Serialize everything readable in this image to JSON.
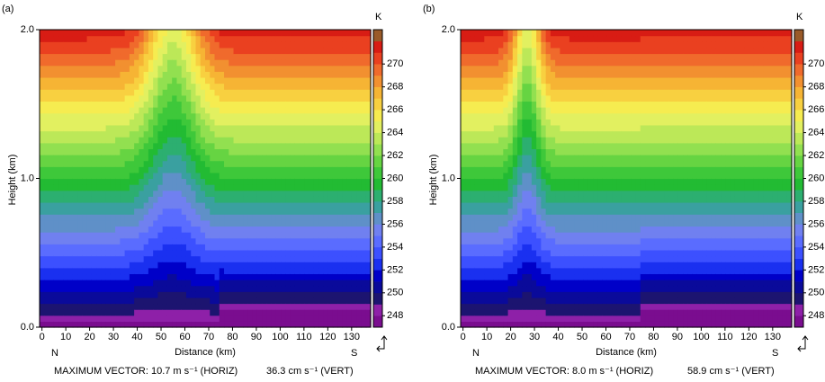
{
  "chart_data": [
    {
      "type": "contour",
      "panel_label": "(a)",
      "ylabel": "Height (km)",
      "xlabel": "Distance (km)",
      "xlim": [
        -1,
        138
      ],
      "xticks": [
        0,
        10,
        20,
        30,
        40,
        50,
        60,
        70,
        80,
        90,
        100,
        110,
        120,
        130
      ],
      "ylim": [
        0,
        2
      ],
      "yticks": [
        {
          "value": 0,
          "label": "0.0"
        },
        {
          "value": 1,
          "label": "1.0"
        },
        {
          "value": 2,
          "label": "2.0"
        }
      ],
      "left_label": "N",
      "right_label": "S",
      "caption_horiz": "MAXIMUM VECTOR: 10.7 m s⁻¹ (HORIZ)",
      "caption_vert": "36.3 cm s⁻¹ (VERT)",
      "colorbar": {
        "unit": "K",
        "lim": [
          247,
          273
        ],
        "ticks": [
          248,
          250,
          252,
          254,
          256,
          258,
          260,
          262,
          264,
          266,
          268,
          270
        ],
        "colors": [
          "#7a0d8f",
          "#8e20a8",
          "#1c1470",
          "#0a0a9a",
          "#0000c8",
          "#1a30f0",
          "#3c50ff",
          "#5a6cff",
          "#7080f0",
          "#5f90c8",
          "#3aa0a0",
          "#2caf70",
          "#22bb33",
          "#3ec83a",
          "#66d442",
          "#92e050",
          "#bce858",
          "#e2f060",
          "#f6ec50",
          "#f8d040",
          "#f6b434",
          "#f29030",
          "#f06a2c",
          "#ea4020",
          "#d81c14",
          "#9a5a28"
        ]
      }
    },
    {
      "type": "contour",
      "panel_label": "(b)",
      "ylabel": "Height (km)",
      "xlabel": "Distance (km)",
      "xlim": [
        -1,
        138
      ],
      "xticks": [
        0,
        10,
        20,
        30,
        40,
        50,
        60,
        70,
        80,
        90,
        100,
        110,
        120,
        130
      ],
      "ylim": [
        0,
        2
      ],
      "yticks": [
        {
          "value": 0,
          "label": "0.0"
        },
        {
          "value": 1,
          "label": "1.0"
        },
        {
          "value": 2,
          "label": "2.0"
        }
      ],
      "left_label": "N",
      "right_label": "S",
      "caption_horiz": "MAXIMUM VECTOR: 8.0 m s⁻¹ (HORIZ)",
      "caption_vert": "58.9 cm s⁻¹ (VERT)",
      "colorbar": {
        "unit": "K",
        "lim": [
          247,
          273
        ],
        "ticks": [
          248,
          250,
          252,
          254,
          256,
          258,
          260,
          262,
          264,
          266,
          268,
          270
        ],
        "colors": [
          "#7a0d8f",
          "#8e20a8",
          "#1c1470",
          "#0a0a9a",
          "#0000c8",
          "#1a30f0",
          "#3c50ff",
          "#5a6cff",
          "#7080f0",
          "#5f90c8",
          "#3aa0a0",
          "#2caf70",
          "#22bb33",
          "#3ec83a",
          "#66d442",
          "#92e050",
          "#bce858",
          "#e2f060",
          "#f6ec50",
          "#f8d040",
          "#f6b434",
          "#f29030",
          "#f06a2c",
          "#ea4020",
          "#d81c14",
          "#9a5a28"
        ]
      }
    }
  ]
}
